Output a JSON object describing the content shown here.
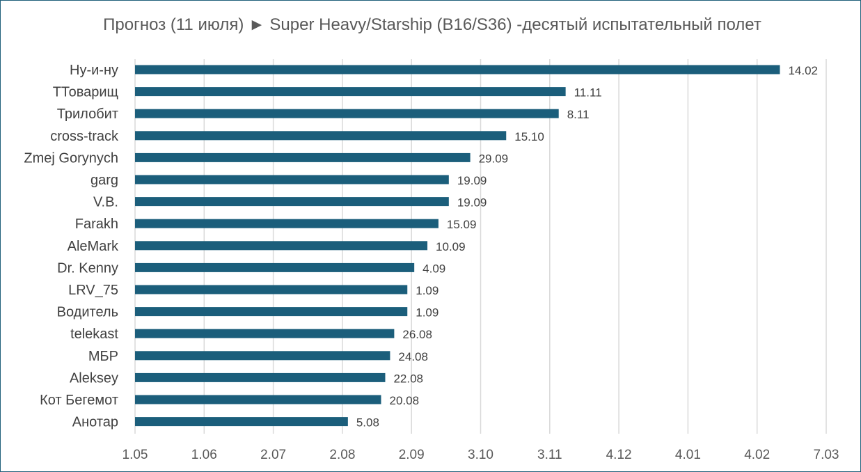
{
  "chart_data": {
    "type": "bar",
    "orientation": "horizontal",
    "title": "Прогноз (11 июля) ► Super Heavy/Starship (B16/S36) -десятый испытательный полет",
    "categories": [
      "Ну-и-ну",
      "ТТоварищ",
      "Трилобит",
      "cross-track",
      "Zmej Gorynych",
      "garg",
      "V.B.",
      "Farakh",
      "AleMark",
      "Dr. Kenny",
      "LRV_75",
      "Водитель",
      "telekast",
      "МБР",
      "Aleksey",
      "Кот Бегемот",
      "Анотар"
    ],
    "values": [
      9.33,
      6.23,
      6.13,
      5.37,
      4.85,
      4.54,
      4.54,
      4.39,
      4.23,
      4.04,
      3.94,
      3.94,
      3.75,
      3.69,
      3.62,
      3.56,
      3.08
    ],
    "data_labels": [
      "14.02",
      "11.11",
      "8.11",
      "15.10",
      "29.09",
      "19.09",
      "19.09",
      "15.09",
      "10.09",
      "4.09",
      "1.09",
      "1.09",
      "26.08",
      "24.08",
      "22.08",
      "20.08",
      "5.08"
    ],
    "x_tick_labels": [
      "1.05",
      "1.06",
      "2.07",
      "2.08",
      "2.09",
      "3.10",
      "3.11",
      "4.12",
      "4.01",
      "4.02",
      "7.03"
    ],
    "xlim": [
      0,
      10
    ],
    "grid": true,
    "legend": "none",
    "colors": {
      "bar": "#1b5e7b",
      "grid": "#d9d9d9",
      "border": "#1f5f7a"
    }
  }
}
